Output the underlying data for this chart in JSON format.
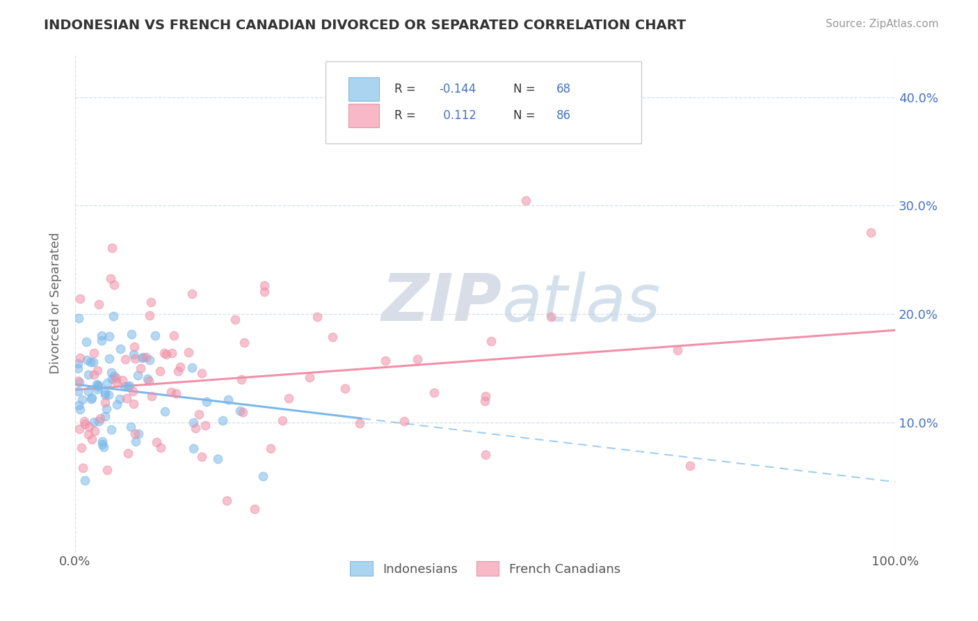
{
  "title": "INDONESIAN VS FRENCH CANADIAN DIVORCED OR SEPARATED CORRELATION CHART",
  "source": "Source: ZipAtlas.com",
  "ylabel": "Divorced or Separated",
  "legend_label1": "Indonesians",
  "legend_label2": "French Canadians",
  "R1": -0.144,
  "N1": 68,
  "R2": 0.112,
  "N2": 86,
  "color_blue": "#7bb8e8",
  "color_pink": "#f090a8",
  "xlim": [
    0.0,
    1.0
  ],
  "ylim": [
    -0.02,
    0.44
  ],
  "yticks": [
    0.1,
    0.2,
    0.3,
    0.4
  ],
  "ytick_labels": [
    "10.0%",
    "20.0%",
    "30.0%",
    "40.0%"
  ],
  "watermark": "ZIPatlas",
  "blue_line_solid_end": 0.35,
  "blue_line_y0": 0.135,
  "blue_line_slope": -0.09,
  "pink_line_y0": 0.13,
  "pink_line_slope": 0.055
}
